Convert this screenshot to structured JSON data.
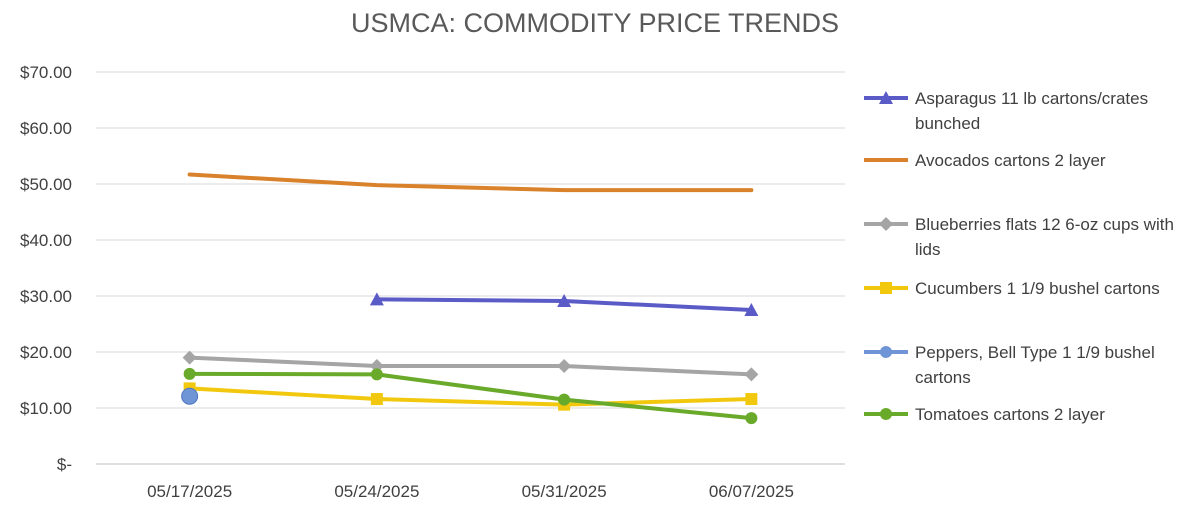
{
  "chart_data": {
    "type": "line",
    "title": "USMCA: COMMODITY PRICE TRENDS",
    "categories": [
      "05/17/2025",
      "05/24/2025",
      "05/31/2025",
      "06/07/2025"
    ],
    "y_ticks": [
      "$-",
      "$10.00",
      "$20.00",
      "$30.00",
      "$40.00",
      "$50.00",
      "$60.00",
      "$70.00"
    ],
    "ylim": [
      0,
      70
    ],
    "grid": true,
    "legend_position": "right",
    "series": [
      {
        "name": "Asparagus 11 lb cartons/crates bunched",
        "legend_lines": [
          "Asparagus 11 lb cartons/crates",
          "bunched"
        ],
        "color": "#5B5BC8",
        "marker": "triangle",
        "values": [
          null,
          29.4,
          29.1,
          27.5
        ]
      },
      {
        "name": "Avocados cartons 2 layer",
        "legend_lines": [
          "Avocados cartons 2 layer"
        ],
        "color": "#D9822B",
        "marker": "none",
        "values": [
          51.7,
          49.8,
          48.9,
          48.9
        ]
      },
      {
        "name": "Blueberries flats 12 6-oz cups with lids",
        "legend_lines": [
          "Blueberries flats 12 6-oz cups with",
          "lids"
        ],
        "color": "#A5A5A5",
        "marker": "diamond",
        "values": [
          19.0,
          17.5,
          17.5,
          16.0
        ]
      },
      {
        "name": "Cucumbers 1 1/9 bushel cartons",
        "legend_lines": [
          "Cucumbers 1 1/9 bushel cartons"
        ],
        "color": "#F2C80F",
        "marker": "square",
        "values": [
          13.5,
          11.6,
          10.6,
          11.6
        ]
      },
      {
        "name": "Peppers, Bell Type 1 1/9 bushel cartons",
        "legend_lines": [
          "Peppers, Bell Type 1 1/9 bushel",
          "cartons"
        ],
        "color": "#6F95D6",
        "marker": "circle-large",
        "values": [
          12.1,
          null,
          null,
          null
        ]
      },
      {
        "name": "Tomatoes cartons 2 layer",
        "legend_lines": [
          "Tomatoes cartons 2 layer"
        ],
        "color": "#6AAA2A",
        "marker": "circle",
        "values": [
          16.1,
          16.0,
          11.5,
          8.2
        ]
      }
    ]
  }
}
